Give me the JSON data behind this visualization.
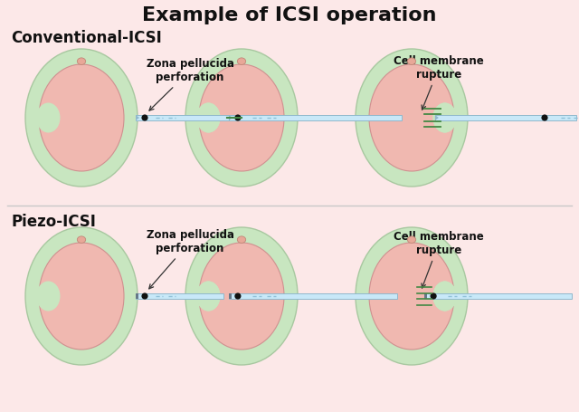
{
  "title": "Example of ICSI operation",
  "title_fontsize": 16,
  "title_fontweight": "bold",
  "bg_color": "#fce8e8",
  "zona_color": "#c8e6c0",
  "zona_edge": "#a8c8a0",
  "cell_color": "#f0b8b0",
  "cell_edge": "#d09090",
  "polar_color": "#e8a898",
  "polar_edge": "#c08878",
  "needle_color": "#c8e8f8",
  "needle_edge": "#90b8cc",
  "needle_dark": "#667788",
  "label_top": "Conventional-ICSI",
  "label_bottom": "Piezo-ICSI",
  "anno1": "Zona pellucida\nperforation",
  "anno2": "Cell membrane\nrupture",
  "divider_color": "#c8c8c8",
  "green_line": "#448844",
  "dot_color": "#111111",
  "dash_color": "#90c0d8"
}
